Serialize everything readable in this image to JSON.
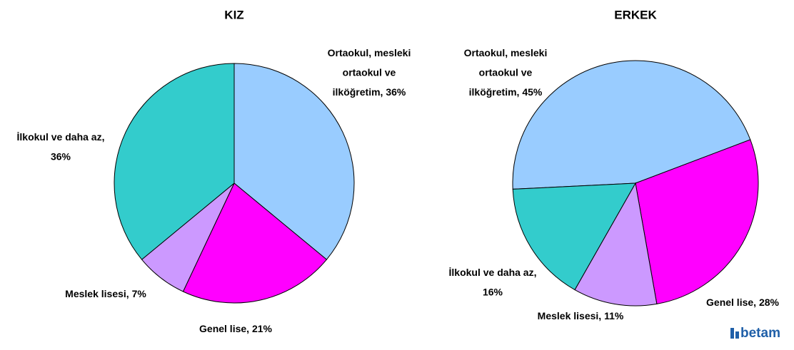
{
  "chart_data": [
    {
      "type": "pie",
      "title": "KIZ",
      "values": [
        36,
        21,
        7,
        36
      ],
      "value_labels": [
        [
          "Ortaokul, mesleki",
          "ortaokul ve",
          "ilköğretim, 36%"
        ],
        [
          "Genel lise, 21%"
        ],
        [
          "Meslek lisesi, 7%"
        ],
        [
          "İlkokul ve daha az,",
          "36%"
        ]
      ],
      "colors": [
        "#99ccff",
        "#ff00ff",
        "#cc99ff",
        "#33cccc"
      ]
    },
    {
      "type": "pie",
      "title": "ERKEK",
      "values": [
        45,
        28,
        11,
        16
      ],
      "value_labels": [
        [
          "Ortaokul, mesleki",
          "ortaokul ve",
          "ilköğretim, 45%"
        ],
        [
          "Genel lise, 28%"
        ],
        [
          "Meslek lisesi, 11%"
        ],
        [
          "İlkokul ve daha az,",
          "16%"
        ]
      ],
      "colors": [
        "#99ccff",
        "#ff00ff",
        "#cc99ff",
        "#33cccc"
      ]
    }
  ],
  "logo": "betam"
}
